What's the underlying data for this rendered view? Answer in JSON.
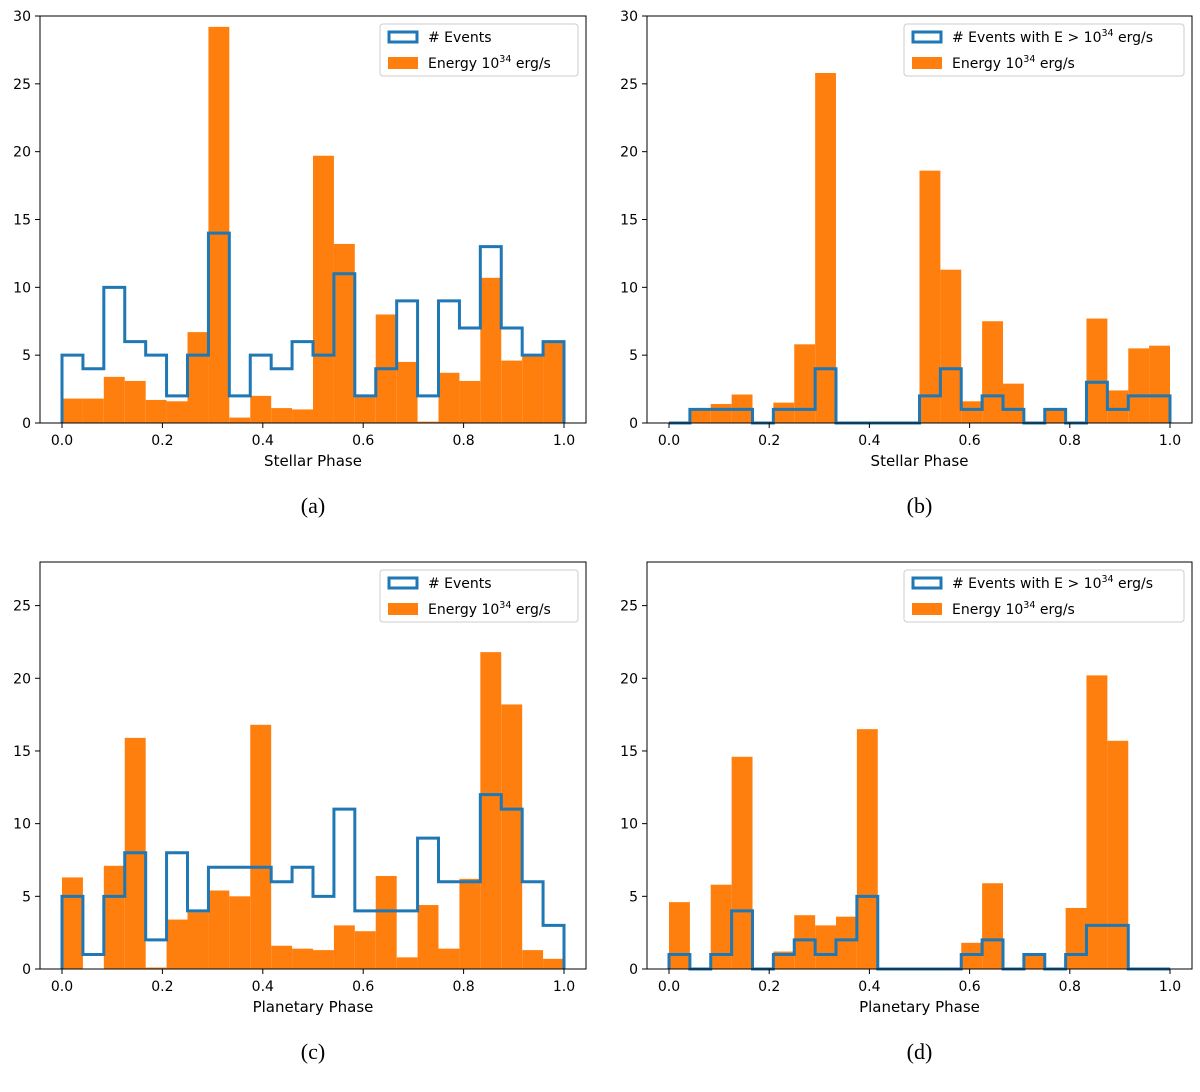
{
  "colors": {
    "energy": "#ff7f0e",
    "events": "#1f77b4"
  },
  "chart_data": [
    {
      "type": "bar",
      "id": "a",
      "caption": "(a)",
      "xlabel": "Stellar Phase",
      "ylabel": "",
      "xlim": [
        0,
        1
      ],
      "ylim": [
        0,
        30
      ],
      "yticks": [
        0,
        5,
        10,
        15,
        20,
        25,
        30
      ],
      "xticks": [
        0.0,
        0.2,
        0.4,
        0.6,
        0.8,
        1.0
      ],
      "xtick_labels": [
        "0.0",
        "0.2",
        "0.4",
        "0.6",
        "0.8",
        "1.0"
      ],
      "bin_edges": [
        0.0,
        0.0417,
        0.0833,
        0.125,
        0.1667,
        0.2083,
        0.25,
        0.2917,
        0.3333,
        0.375,
        0.4167,
        0.4583,
        0.5,
        0.5417,
        0.5833,
        0.625,
        0.6667,
        0.7083,
        0.75,
        0.7917,
        0.8333,
        0.875,
        0.9167,
        0.9583,
        1.0
      ],
      "series": [
        {
          "name": "Energy 10^34 erg/s",
          "kind": "filled",
          "values": [
            1.8,
            1.8,
            3.4,
            3.1,
            1.7,
            1.6,
            6.7,
            29.2,
            0.4,
            2.0,
            1.1,
            1.0,
            19.7,
            13.2,
            1.9,
            8.0,
            4.5,
            0.1,
            3.7,
            3.1,
            10.7,
            4.6,
            4.9,
            5.9
          ]
        },
        {
          "name": "# Events",
          "kind": "step",
          "values": [
            5,
            4,
            10,
            6,
            5,
            2,
            5,
            14,
            2,
            5,
            4,
            6,
            5,
            11,
            2,
            4,
            9,
            2,
            9,
            7,
            13,
            7,
            5,
            6
          ]
        }
      ],
      "legend": {
        "location": "top-right",
        "entries": [
          {
            "label": "# Events",
            "type": "step"
          },
          {
            "label": "Energy 10",
            "sup": "34",
            "suffix": " erg/s",
            "type": "filled"
          }
        ]
      }
    },
    {
      "type": "bar",
      "id": "b",
      "caption": "(b)",
      "xlabel": "Stellar Phase",
      "ylabel": "",
      "xlim": [
        0,
        1
      ],
      "ylim": [
        0,
        30
      ],
      "yticks": [
        0,
        5,
        10,
        15,
        20,
        25,
        30
      ],
      "xticks": [
        0.0,
        0.2,
        0.4,
        0.6,
        0.8,
        1.0
      ],
      "xtick_labels": [
        "0.0",
        "0.2",
        "0.4",
        "0.6",
        "0.8",
        "1.0"
      ],
      "bin_edges": [
        0.0,
        0.0417,
        0.0833,
        0.125,
        0.1667,
        0.2083,
        0.25,
        0.2917,
        0.3333,
        0.375,
        0.4167,
        0.4583,
        0.5,
        0.5417,
        0.5833,
        0.625,
        0.6667,
        0.7083,
        0.75,
        0.7917,
        0.8333,
        0.875,
        0.9167,
        0.9583,
        1.0
      ],
      "series": [
        {
          "name": "Energy 10^34 erg/s",
          "kind": "filled",
          "values": [
            0,
            1.0,
            1.4,
            2.1,
            0,
            1.5,
            5.8,
            25.8,
            0,
            0,
            0,
            0,
            18.6,
            11.3,
            1.6,
            7.5,
            2.9,
            0,
            1.1,
            0,
            7.7,
            2.4,
            5.5,
            5.7
          ]
        },
        {
          "name": "# Events with E > 10^34 erg/s",
          "kind": "step",
          "values": [
            0,
            1,
            1,
            1,
            0,
            1,
            1,
            4,
            0,
            0,
            0,
            0,
            2,
            4,
            1,
            2,
            1,
            0,
            1,
            0,
            3,
            1,
            2,
            2
          ]
        }
      ],
      "legend": {
        "location": "top-right",
        "entries": [
          {
            "label": "# Events with E > 10",
            "sup": "34",
            "suffix": " erg/s",
            "type": "step"
          },
          {
            "label": "Energy 10",
            "sup": "34",
            "suffix": " erg/s",
            "type": "filled"
          }
        ]
      }
    },
    {
      "type": "bar",
      "id": "c",
      "caption": "(c)",
      "xlabel": "Planetary Phase",
      "ylabel": "",
      "xlim": [
        0,
        1
      ],
      "ylim": [
        0,
        28
      ],
      "yticks": [
        0,
        5,
        10,
        15,
        20,
        25
      ],
      "xticks": [
        0.0,
        0.2,
        0.4,
        0.6,
        0.8,
        1.0
      ],
      "xtick_labels": [
        "0.0",
        "0.2",
        "0.4",
        "0.6",
        "0.8",
        "1.0"
      ],
      "bin_edges": [
        0.0,
        0.0417,
        0.0833,
        0.125,
        0.1667,
        0.2083,
        0.25,
        0.2917,
        0.3333,
        0.375,
        0.4167,
        0.4583,
        0.5,
        0.5417,
        0.5833,
        0.625,
        0.6667,
        0.7083,
        0.75,
        0.7917,
        0.8333,
        0.875,
        0.9167,
        0.9583,
        1.0
      ],
      "series": [
        {
          "name": "Energy 10^34 erg/s",
          "kind": "filled",
          "values": [
            6.3,
            0,
            7.1,
            15.9,
            0.1,
            3.4,
            3.9,
            5.4,
            5.0,
            16.8,
            1.6,
            1.4,
            1.3,
            3.0,
            2.6,
            6.4,
            0.8,
            4.4,
            1.4,
            6.2,
            21.8,
            18.2,
            1.3,
            0.7
          ]
        },
        {
          "name": "# Events",
          "kind": "step",
          "values": [
            5,
            1,
            5,
            8,
            2,
            8,
            4,
            7,
            7,
            7,
            6,
            7,
            5,
            11,
            4,
            4,
            4,
            9,
            6,
            6,
            12,
            11,
            6,
            3
          ]
        }
      ],
      "legend": {
        "location": "top-right",
        "entries": [
          {
            "label": "# Events",
            "type": "step"
          },
          {
            "label": "Energy 10",
            "sup": "34",
            "suffix": " erg/s",
            "type": "filled"
          }
        ]
      }
    },
    {
      "type": "bar",
      "id": "d",
      "caption": "(d)",
      "xlabel": "Planetary Phase",
      "ylabel": "",
      "xlim": [
        0,
        1
      ],
      "ylim": [
        0,
        28
      ],
      "yticks": [
        0,
        5,
        10,
        15,
        20,
        25
      ],
      "xticks": [
        0.0,
        0.2,
        0.4,
        0.6,
        0.8,
        1.0
      ],
      "xtick_labels": [
        "0.0",
        "0.2",
        "0.4",
        "0.6",
        "0.8",
        "1.0"
      ],
      "bin_edges": [
        0.0,
        0.0417,
        0.0833,
        0.125,
        0.1667,
        0.2083,
        0.25,
        0.2917,
        0.3333,
        0.375,
        0.4167,
        0.4583,
        0.5,
        0.5417,
        0.5833,
        0.625,
        0.6667,
        0.7083,
        0.75,
        0.7917,
        0.8333,
        0.875,
        0.9167,
        0.9583,
        1.0
      ],
      "series": [
        {
          "name": "Energy 10^34 erg/s",
          "kind": "filled",
          "values": [
            4.6,
            0,
            5.8,
            14.6,
            0,
            1.2,
            3.7,
            3.0,
            3.6,
            16.5,
            0,
            0,
            0,
            0,
            1.8,
            5.9,
            0,
            0.9,
            0,
            4.2,
            20.2,
            15.7,
            0,
            0
          ]
        },
        {
          "name": "# Events with E > 10^34 erg/s",
          "kind": "step",
          "values": [
            1,
            0,
            1,
            4,
            0,
            1,
            2,
            1,
            2,
            5,
            0,
            0,
            0,
            0,
            1,
            2,
            0,
            1,
            0,
            1,
            3,
            3,
            0,
            0
          ]
        }
      ],
      "legend": {
        "location": "top-right",
        "entries": [
          {
            "label": "# Events with E > 10",
            "sup": "34",
            "suffix": " erg/s",
            "type": "step"
          },
          {
            "label": "Energy 10",
            "sup": "34",
            "suffix": " erg/s",
            "type": "filled"
          }
        ]
      }
    }
  ]
}
